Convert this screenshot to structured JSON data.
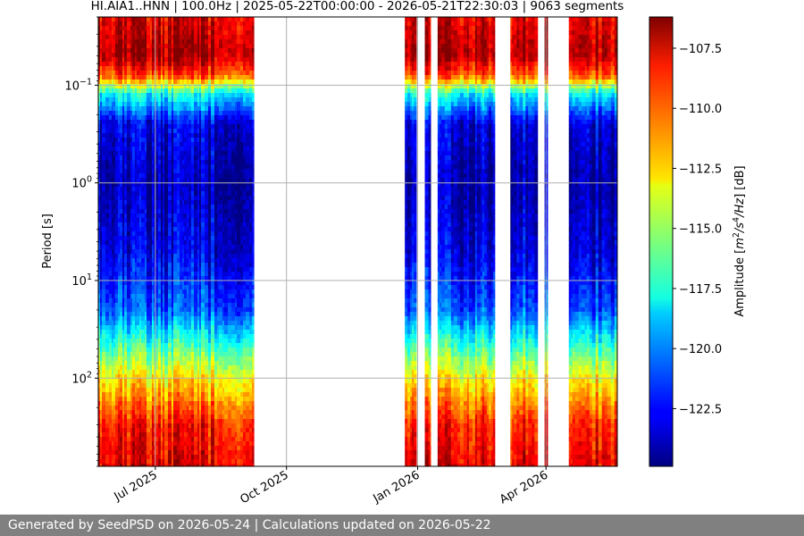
{
  "chart_data": {
    "type": "heatmap",
    "title": "HI.AIA1..HNN | 100.0Hz | 2025-05-22T00:00:00 - 2026-05-21T22:30:03 | 9063 segments",
    "xlabel": "",
    "ylabel": "Period [s]",
    "x_range": [
      "2025-05-22",
      "2026-05-21"
    ],
    "x_ticks": [
      {
        "date": "2025-07-01",
        "label": "Jul 2025"
      },
      {
        "date": "2025-10-01",
        "label": "Oct 2025"
      },
      {
        "date": "2026-01-01",
        "label": "Jan 2026"
      },
      {
        "date": "2026-04-01",
        "label": "Apr 2026"
      }
    ],
    "y_scale": "log",
    "y_inverted": true,
    "y_range": [
      0.02,
      800
    ],
    "y_ticks": [
      {
        "value": 0.1,
        "base": "10",
        "exp": "−1"
      },
      {
        "value": 1,
        "base": "10",
        "exp": "0"
      },
      {
        "value": 10,
        "base": "10",
        "exp": "1"
      },
      {
        "value": 100,
        "base": "10",
        "exp": "2"
      }
    ],
    "grid": true,
    "colormap": "jet",
    "colorbar": {
      "label_main": "Amplitude [",
      "label_parts": [
        "m",
        "2",
        "/s",
        "4",
        "/Hz",
        "] [dB]"
      ],
      "range": [
        -124.9,
        -106.2
      ],
      "ticks": [
        {
          "value": -107.5,
          "label": "−107.5"
        },
        {
          "value": -110.0,
          "label": "−110.0"
        },
        {
          "value": -112.5,
          "label": "−112.5"
        },
        {
          "value": -115.0,
          "label": "−115.0"
        },
        {
          "value": -117.5,
          "label": "−117.5"
        },
        {
          "value": -120.0,
          "label": "−120.0"
        },
        {
          "value": -122.5,
          "label": "−122.5"
        }
      ]
    },
    "data_intervals": [
      [
        "2025-05-22",
        "2025-09-08"
      ],
      [
        "2025-12-23",
        "2025-12-31"
      ],
      [
        "2026-01-06",
        "2026-01-10"
      ],
      [
        "2026-01-15",
        "2026-02-24"
      ],
      [
        "2026-03-07",
        "2026-03-26"
      ],
      [
        "2026-03-31",
        "2026-04-02"
      ],
      [
        "2026-04-17",
        "2026-05-21"
      ]
    ],
    "amplitude_profile_db": [
      {
        "period": 0.02,
        "db": -108.0
      },
      {
        "period": 0.05,
        "db": -107.0
      },
      {
        "period": 0.08,
        "db": -110.0
      },
      {
        "period": 0.12,
        "db": -117.5
      },
      {
        "period": 0.25,
        "db": -123.0
      },
      {
        "period": 1.0,
        "db": -124.0
      },
      {
        "period": 5.0,
        "db": -123.0
      },
      {
        "period": 20.0,
        "db": -121.0
      },
      {
        "period": 40.0,
        "db": -117.5
      },
      {
        "period": 100.0,
        "db": -113.0
      },
      {
        "period": 300.0,
        "db": -109.0
      },
      {
        "period": 800.0,
        "db": -108.0
      }
    ]
  },
  "colors": {
    "grid": "#b0b0b0",
    "footer_bg": "#808080",
    "footer_text": "#ffffff"
  },
  "footer": {
    "text": "Generated by SeedPSD on 2026-05-24 | Calculations updated on 2026-05-22"
  }
}
